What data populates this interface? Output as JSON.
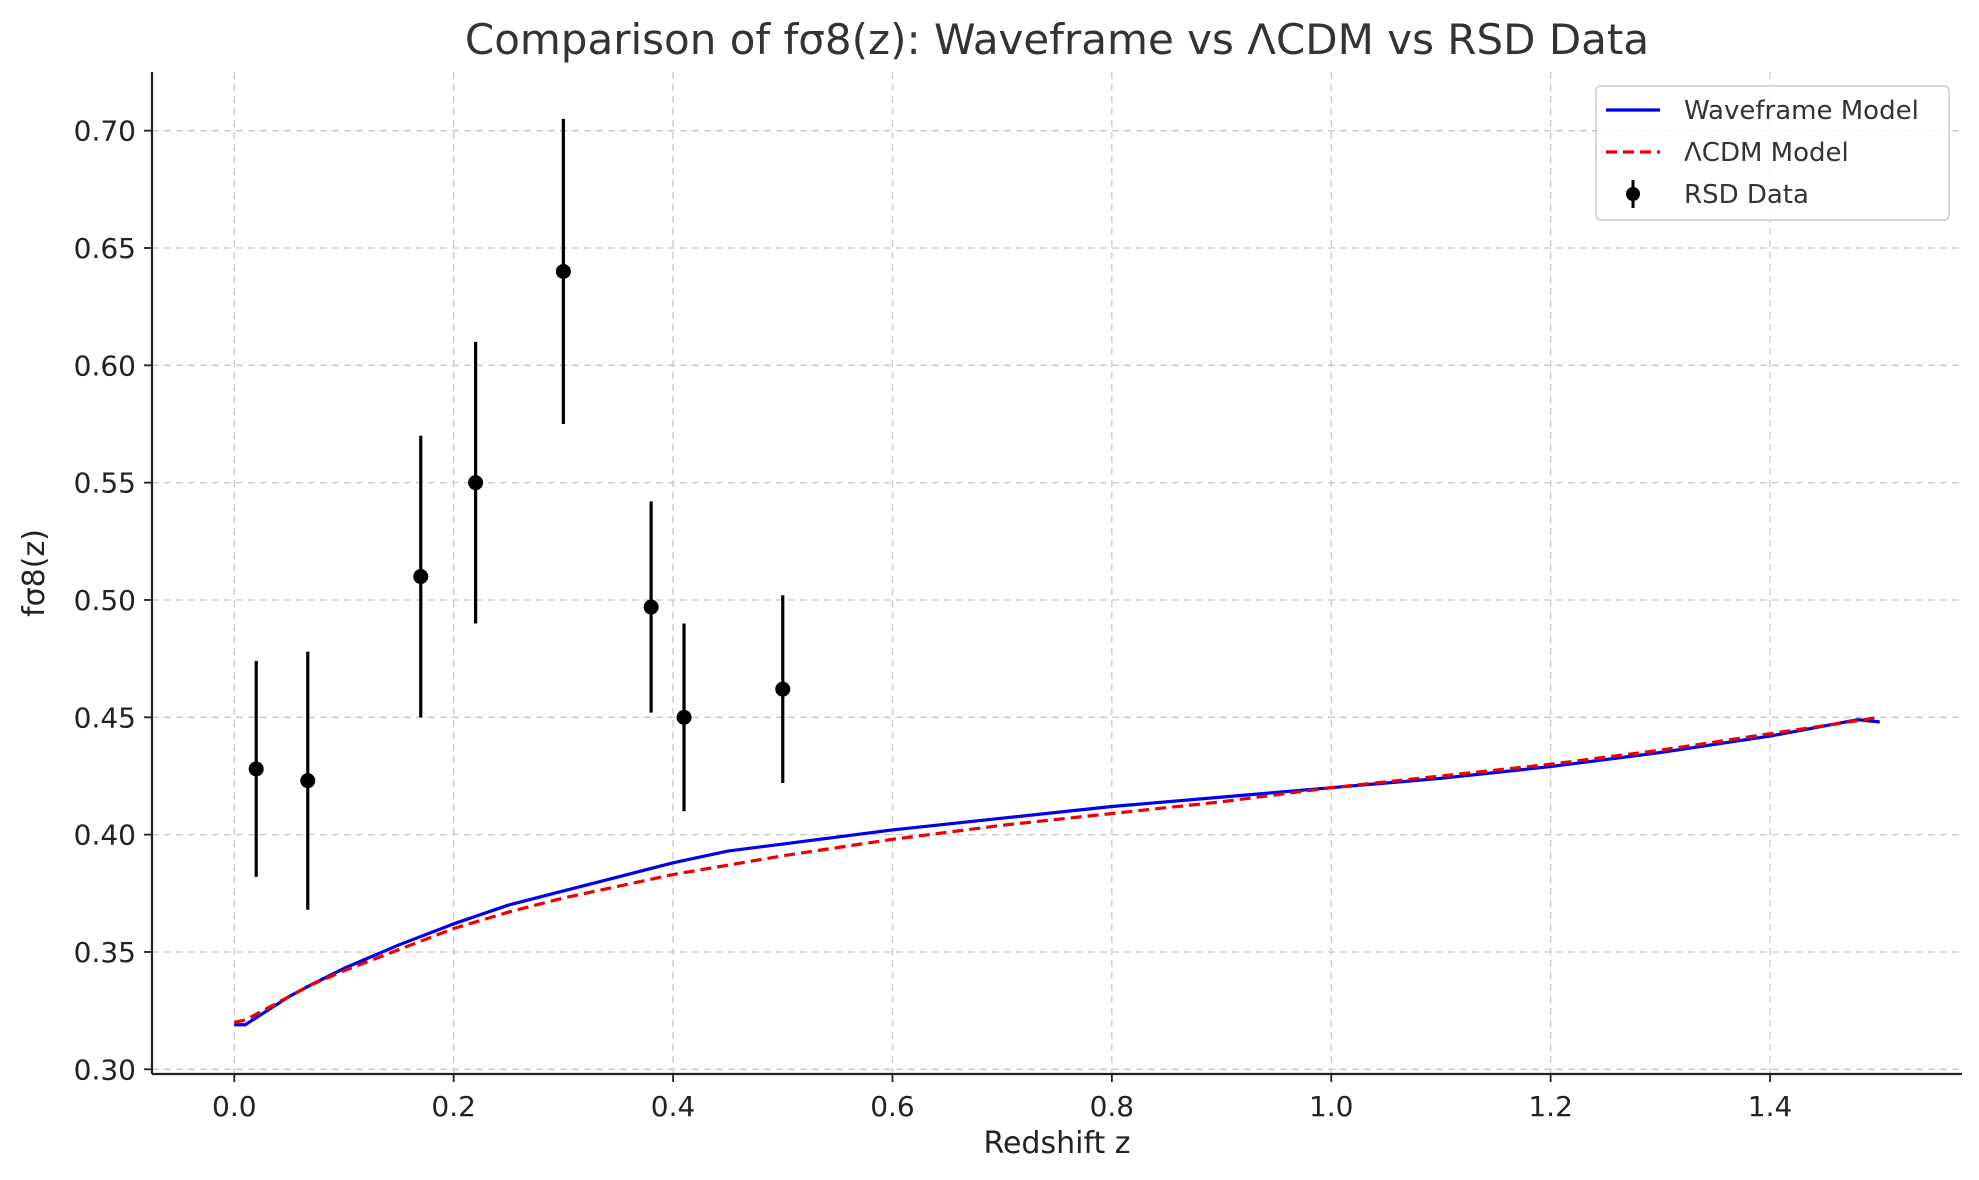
{
  "chart_data": {
    "type": "line",
    "title": "Comparison of fσ8(z): Waveframe vs ΛCDM vs RSD Data",
    "xlabel": "Redshift z",
    "ylabel": "fσ8(z)",
    "xlim": [
      -0.075,
      1.575
    ],
    "ylim": [
      0.298,
      0.725
    ],
    "xticks": [
      0.0,
      0.2,
      0.4,
      0.6,
      0.8,
      1.0,
      1.2,
      1.4
    ],
    "yticks": [
      0.3,
      0.35,
      0.4,
      0.45,
      0.5,
      0.55,
      0.6,
      0.65,
      0.7
    ],
    "grid": true,
    "legend_position": "top-right",
    "series": [
      {
        "name": "Waveframe Model",
        "style": "solid",
        "color": "#0000ee",
        "x": [
          0.0,
          0.01,
          0.03,
          0.05,
          0.07,
          0.1,
          0.15,
          0.2,
          0.25,
          0.3,
          0.35,
          0.4,
          0.45,
          0.5,
          0.6,
          0.7,
          0.8,
          0.9,
          1.0,
          1.1,
          1.2,
          1.3,
          1.4,
          1.48,
          1.5
        ],
        "y": [
          0.319,
          0.319,
          0.325,
          0.331,
          0.336,
          0.343,
          0.353,
          0.362,
          0.37,
          0.376,
          0.382,
          0.388,
          0.393,
          0.396,
          0.402,
          0.407,
          0.412,
          0.416,
          0.42,
          0.424,
          0.429,
          0.435,
          0.442,
          0.449,
          0.448
        ]
      },
      {
        "name": "ΛCDM Model",
        "style": "dashed",
        "color": "#ee0000",
        "x": [
          0.0,
          0.01,
          0.03,
          0.05,
          0.07,
          0.1,
          0.15,
          0.2,
          0.25,
          0.3,
          0.35,
          0.4,
          0.45,
          0.5,
          0.6,
          0.7,
          0.8,
          0.9,
          1.0,
          1.1,
          1.2,
          1.3,
          1.4,
          1.5
        ],
        "y": [
          0.32,
          0.321,
          0.326,
          0.331,
          0.336,
          0.342,
          0.351,
          0.36,
          0.367,
          0.373,
          0.378,
          0.383,
          0.387,
          0.391,
          0.398,
          0.404,
          0.409,
          0.414,
          0.42,
          0.425,
          0.43,
          0.436,
          0.443,
          0.45
        ]
      }
    ],
    "errorbar_series": {
      "name": "RSD Data",
      "color": "#000000",
      "points": [
        {
          "x": 0.02,
          "y": 0.428,
          "err": 0.046
        },
        {
          "x": 0.067,
          "y": 0.423,
          "err": 0.055
        },
        {
          "x": 0.17,
          "y": 0.51,
          "err": 0.06
        },
        {
          "x": 0.22,
          "y": 0.55,
          "err": 0.06
        },
        {
          "x": 0.3,
          "y": 0.64,
          "err": 0.065
        },
        {
          "x": 0.38,
          "y": 0.497,
          "err": 0.045
        },
        {
          "x": 0.41,
          "y": 0.45,
          "err": 0.04
        },
        {
          "x": 0.5,
          "y": 0.462,
          "err": 0.04
        }
      ]
    }
  }
}
